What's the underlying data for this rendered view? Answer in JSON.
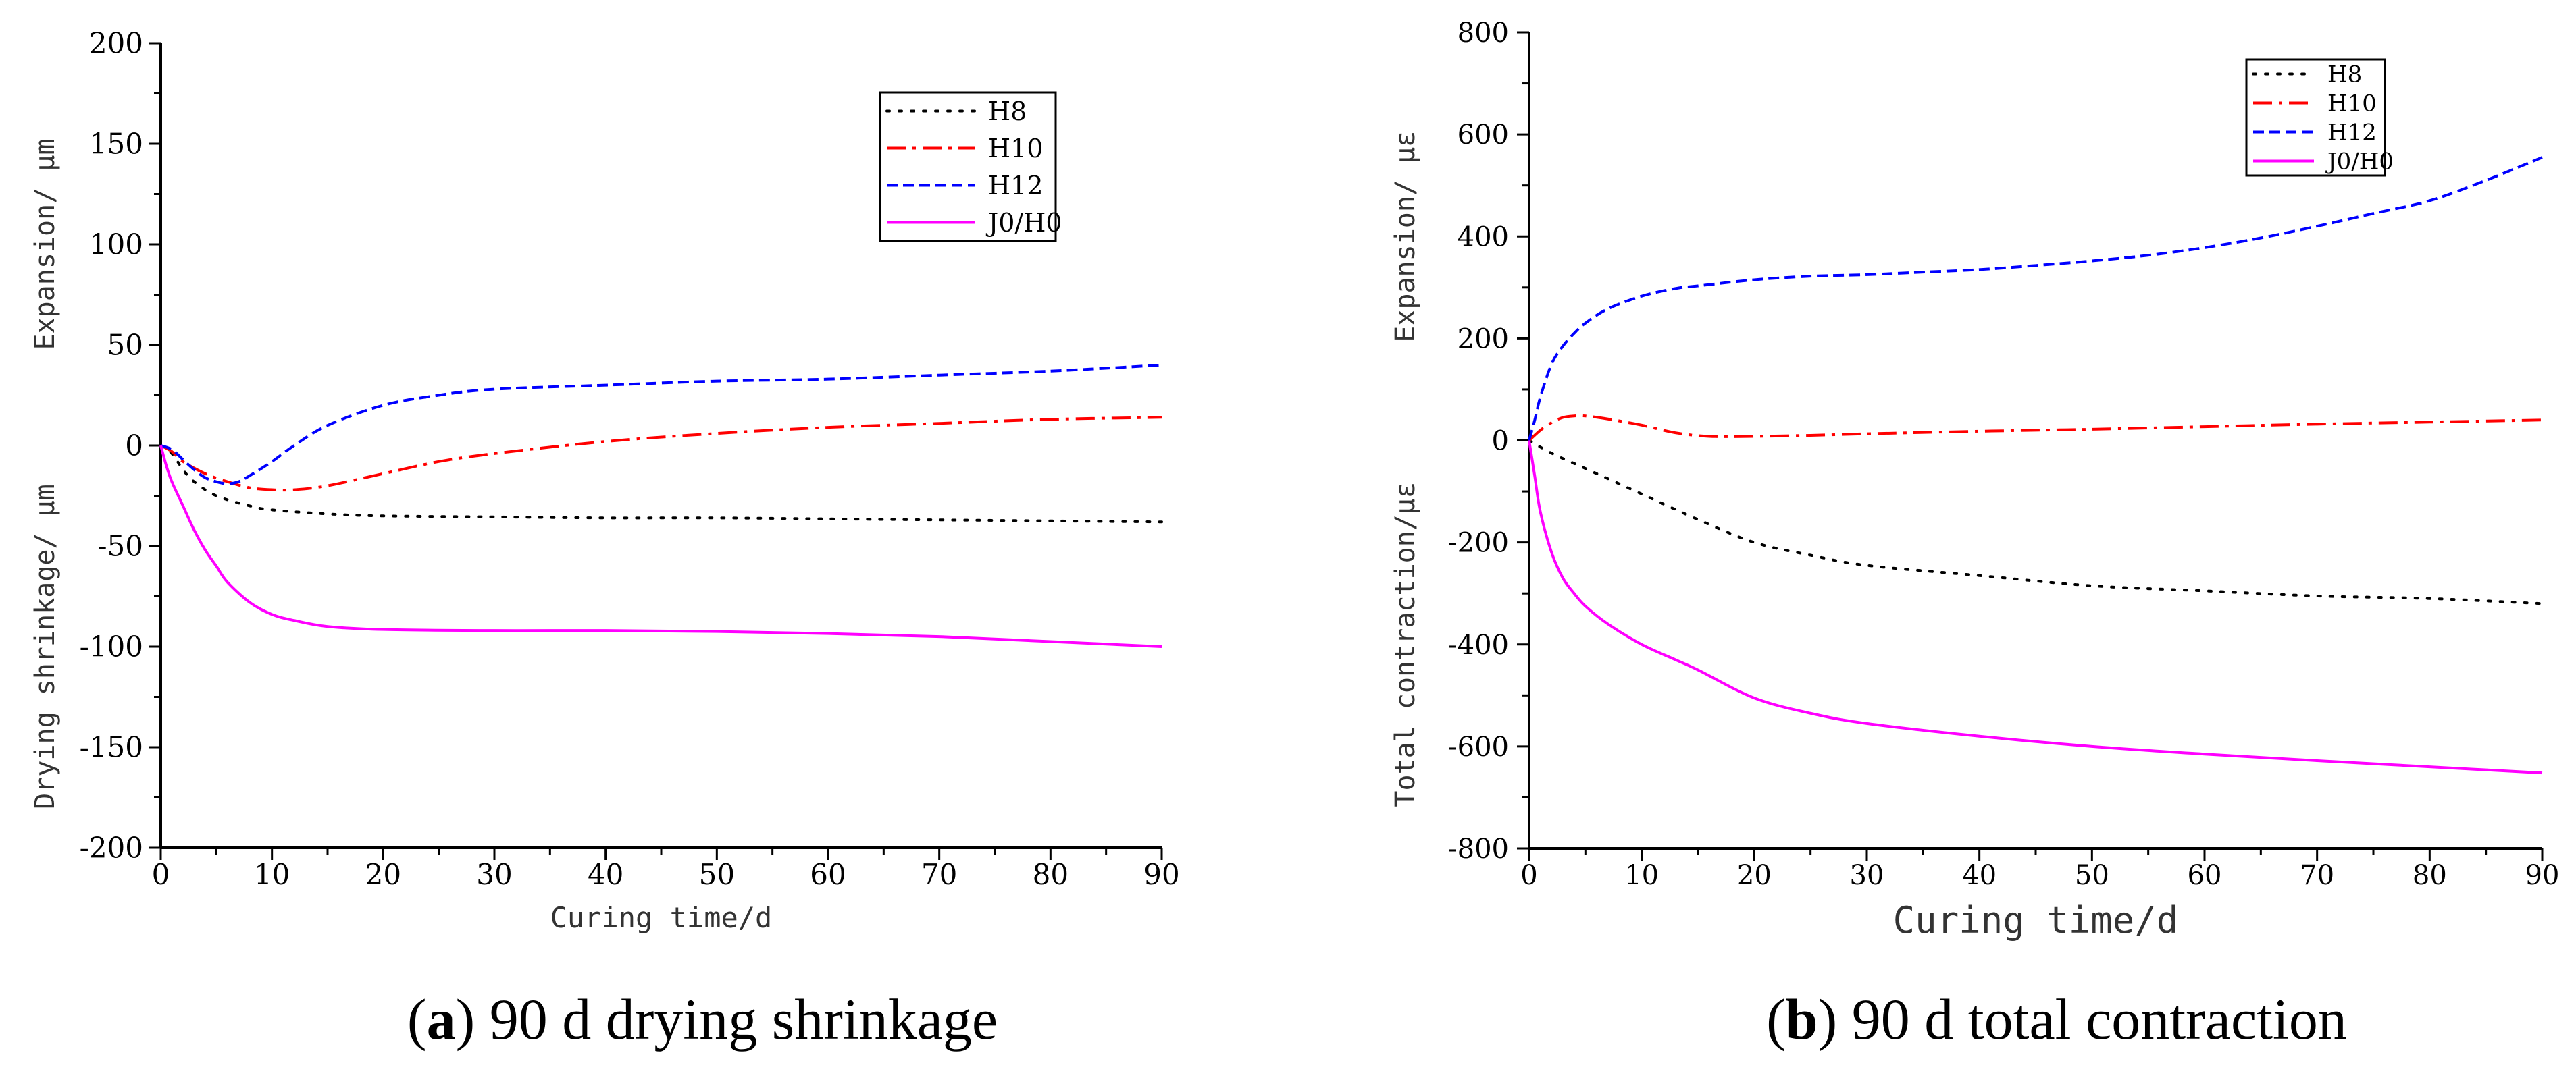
{
  "colors": {
    "H8": "#000000",
    "H10": "#ff0000",
    "H12": "#0000ff",
    "J0/H0": "#ff00ff",
    "axis": "#000000"
  },
  "captions": [
    {
      "letter": "a",
      "paren_open": "(",
      "paren_close": ")",
      "text": " 90 d drying shrinkage"
    },
    {
      "letter": "b",
      "paren_open": "(",
      "paren_close": ")",
      "text": " 90 d total contraction"
    }
  ],
  "chart_data": [
    {
      "type": "line",
      "title": "",
      "xlabel": "Curing time/d",
      "ylabel_upper": "Expansion/ μm",
      "ylabel_lower": "Drying shrinkage/ μm",
      "xlim": [
        0,
        90
      ],
      "ylim": [
        -200,
        200
      ],
      "xticks": [
        0,
        10,
        20,
        30,
        40,
        50,
        60,
        70,
        80,
        90
      ],
      "yticks": [
        -200,
        -150,
        -100,
        -50,
        0,
        50,
        100,
        150,
        200
      ],
      "grid": false,
      "legend_position": "top-right",
      "series": [
        {
          "name": "H8",
          "style": "dotted",
          "x": [
            0,
            1,
            2,
            3,
            5,
            8,
            10,
            15,
            20,
            30,
            40,
            50,
            60,
            70,
            80,
            90
          ],
          "y": [
            0,
            -4,
            -12,
            -18,
            -25,
            -30,
            -32,
            -34,
            -35,
            -35.5,
            -36,
            -36,
            -36.5,
            -37,
            -37.5,
            -38
          ]
        },
        {
          "name": "H10",
          "style": "dashdot",
          "x": [
            0,
            1,
            2,
            4,
            6,
            8,
            10,
            12,
            15,
            20,
            25,
            30,
            40,
            50,
            60,
            70,
            80,
            90
          ],
          "y": [
            0,
            -3,
            -8,
            -14,
            -18,
            -21,
            -22,
            -22,
            -20,
            -14,
            -8,
            -4,
            2,
            6,
            9,
            11,
            13,
            14
          ]
        },
        {
          "name": "H12",
          "style": "dashed",
          "x": [
            0,
            1,
            2,
            3,
            4,
            5,
            6,
            7,
            8,
            10,
            12,
            15,
            20,
            25,
            30,
            40,
            50,
            60,
            70,
            80,
            90
          ],
          "y": [
            0,
            -2,
            -7,
            -12,
            -16,
            -18,
            -19,
            -18,
            -15,
            -8,
            0,
            10,
            20,
            25,
            28,
            30,
            32,
            33,
            35,
            37,
            40
          ]
        },
        {
          "name": "J0/H0",
          "style": "solid",
          "x": [
            0,
            0.5,
            1,
            2,
            3,
            4,
            5,
            6,
            8,
            10,
            12,
            15,
            20,
            30,
            40,
            50,
            60,
            70,
            80,
            90
          ],
          "y": [
            0,
            -10,
            -18,
            -30,
            -42,
            -52,
            -60,
            -68,
            -78,
            -84,
            -87,
            -90,
            -91.5,
            -92,
            -92,
            -92.5,
            -93.5,
            -95,
            -97.5,
            -100
          ]
        }
      ]
    },
    {
      "type": "line",
      "title": "",
      "xlabel": "Curing time/d",
      "ylabel_upper": "Expansion/ με",
      "ylabel_lower": "Total contraction/με",
      "xlim": [
        0,
        90
      ],
      "ylim": [
        -800,
        800
      ],
      "xticks": [
        0,
        10,
        20,
        30,
        40,
        50,
        60,
        70,
        80,
        90
      ],
      "yticks": [
        -800,
        -600,
        -400,
        -200,
        0,
        200,
        400,
        600,
        800
      ],
      "grid": false,
      "legend_position": "top-right",
      "series": [
        {
          "name": "H8",
          "style": "dotted",
          "x": [
            0,
            2,
            5,
            10,
            15,
            20,
            25,
            30,
            40,
            50,
            60,
            70,
            80,
            90
          ],
          "y": [
            0,
            -25,
            -55,
            -105,
            -155,
            -200,
            -225,
            -245,
            -265,
            -285,
            -295,
            -305,
            -310,
            -320
          ]
        },
        {
          "name": "H10",
          "style": "dashdot",
          "x": [
            0,
            1,
            2,
            3,
            4,
            5,
            7,
            10,
            13,
            16,
            20,
            25,
            30,
            40,
            50,
            60,
            70,
            80,
            90
          ],
          "y": [
            0,
            20,
            35,
            45,
            48,
            48,
            42,
            30,
            15,
            8,
            8,
            10,
            13,
            18,
            22,
            27,
            32,
            36,
            40
          ]
        },
        {
          "name": "H12",
          "style": "dashed",
          "x": [
            0,
            0.5,
            1,
            2,
            3,
            4,
            5,
            7,
            10,
            13,
            15,
            20,
            25,
            30,
            35,
            40,
            45,
            50,
            55,
            60,
            65,
            70,
            75,
            80,
            85,
            90
          ],
          "y": [
            0,
            40,
            85,
            150,
            185,
            210,
            230,
            258,
            283,
            298,
            303,
            315,
            322,
            325,
            330,
            335,
            343,
            352,
            363,
            378,
            397,
            420,
            445,
            470,
            510,
            555
          ]
        },
        {
          "name": "J0/H0",
          "style": "solid",
          "x": [
            0,
            0.5,
            1,
            2,
            3,
            4,
            5,
            7,
            10,
            13,
            15,
            20,
            25,
            30,
            40,
            50,
            60,
            70,
            80,
            90
          ],
          "y": [
            0,
            -70,
            -140,
            -220,
            -270,
            -300,
            -325,
            -360,
            -400,
            -430,
            -450,
            -505,
            -535,
            -555,
            -580,
            -600,
            -615,
            -628,
            -640,
            -652
          ]
        }
      ]
    }
  ]
}
